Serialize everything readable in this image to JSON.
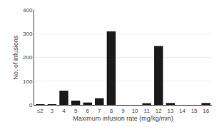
{
  "chart_data": {
    "type": "bar",
    "categories": [
      "≤2",
      "3",
      "4",
      "5",
      "6",
      "7",
      "8",
      "9",
      "10",
      "11",
      "12",
      "13",
      "14",
      "15",
      "16"
    ],
    "values": [
      3,
      3,
      60,
      18,
      10,
      28,
      310,
      0,
      0,
      7,
      248,
      8,
      0,
      0,
      8
    ],
    "color": "#1a1a1a",
    "xlabel": "Maximum infusion rate (mg/kg/min)",
    "ylabel": "No. of infusions",
    "ylim": [
      0,
      400
    ],
    "yticks": [
      0,
      100,
      200,
      300,
      400
    ],
    "grid": true
  }
}
